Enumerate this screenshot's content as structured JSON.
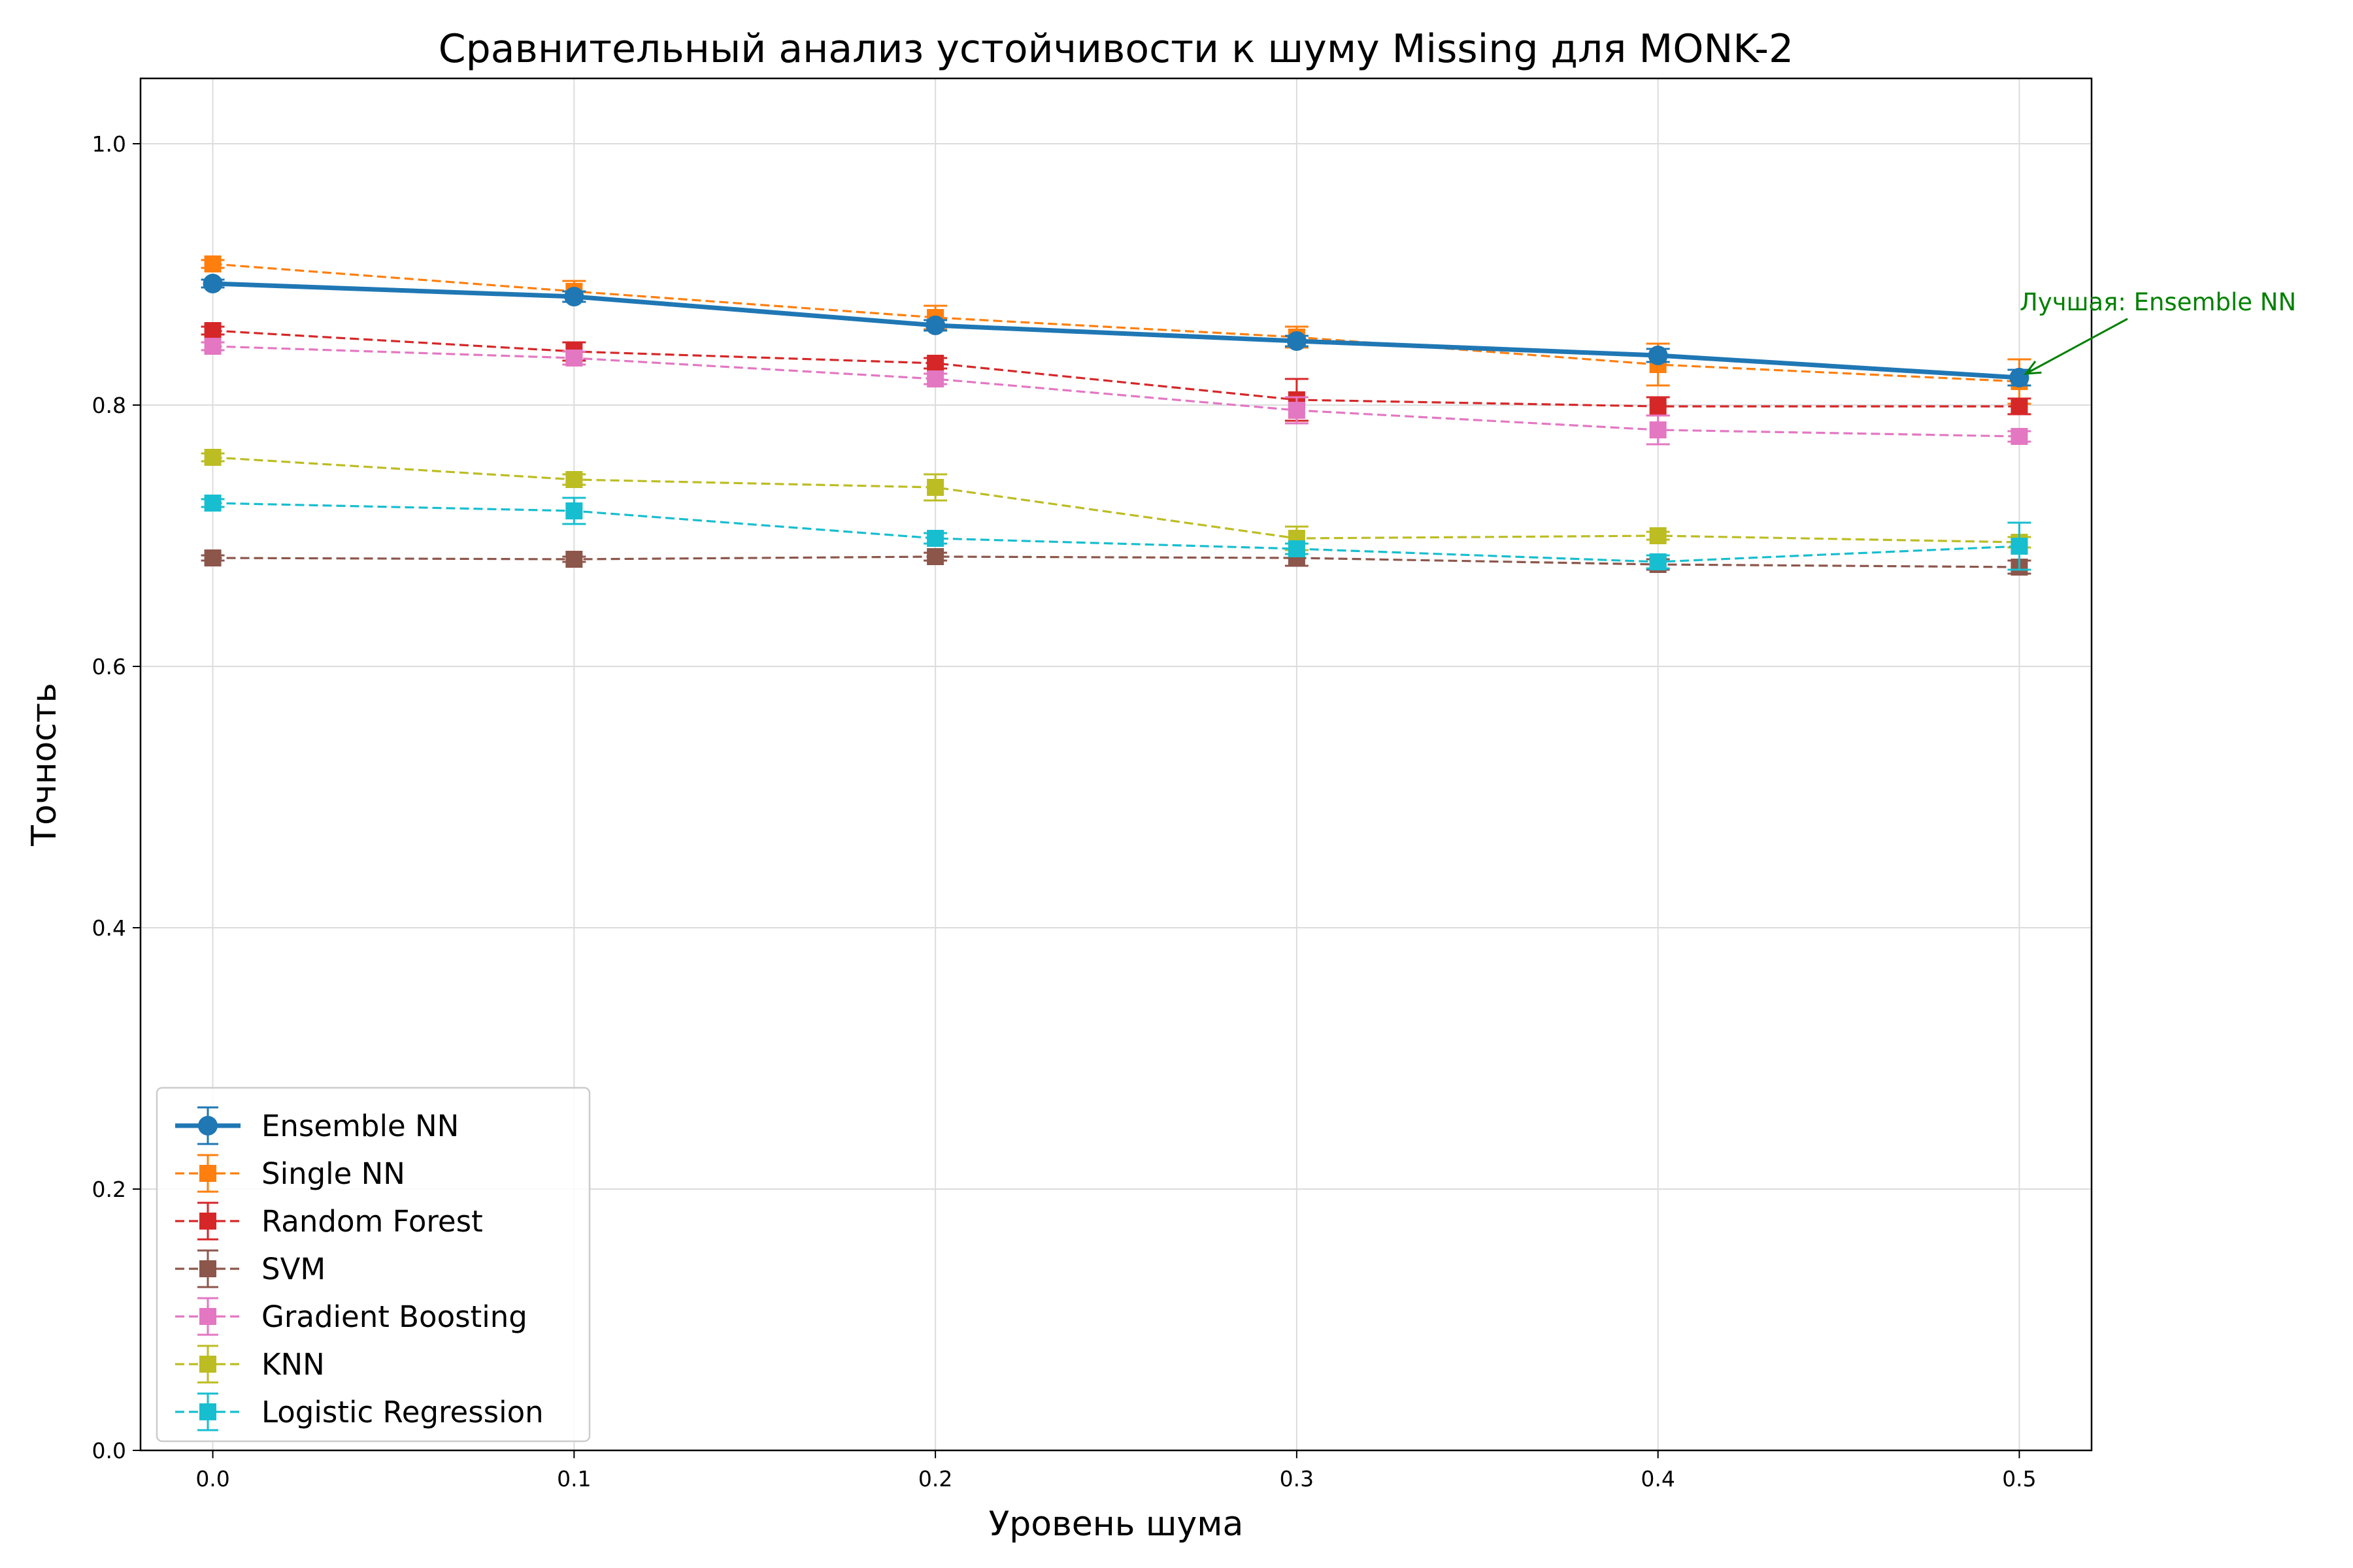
{
  "chart_data": {
    "type": "line",
    "title": "Сравнительный анализ устойчивости к шуму Missing для MONK-2",
    "xlabel": "Уровень шума",
    "ylabel": "Точность",
    "xlim": [
      -0.02,
      0.52
    ],
    "ylim": [
      0.0,
      1.05
    ],
    "x": [
      0.0,
      0.1,
      0.2,
      0.3,
      0.4,
      0.5
    ],
    "x_ticks": [
      "0.0",
      "0.1",
      "0.2",
      "0.3",
      "0.4",
      "0.5"
    ],
    "y_ticks": [
      "0.0",
      "0.2",
      "0.4",
      "0.6",
      "0.8",
      "1.0"
    ],
    "grid": true,
    "legend_position": "lower-left",
    "series": [
      {
        "name": "Ensemble NN",
        "color": "#1f77b4",
        "marker": "circle",
        "line_style": "solid",
        "values": [
          0.893,
          0.883,
          0.861,
          0.849,
          0.838,
          0.821
        ],
        "errors": [
          0.003,
          0.004,
          0.004,
          0.004,
          0.005,
          0.006
        ]
      },
      {
        "name": "Single NN",
        "color": "#ff7f0e",
        "marker": "square",
        "line_style": "dashed",
        "values": [
          0.908,
          0.887,
          0.867,
          0.852,
          0.831,
          0.818
        ],
        "errors": [
          0.003,
          0.008,
          0.009,
          0.008,
          0.016,
          0.017
        ]
      },
      {
        "name": "Random Forest",
        "color": "#d62728",
        "marker": "square",
        "line_style": "dashed",
        "values": [
          0.857,
          0.841,
          0.832,
          0.804,
          0.799,
          0.799
        ],
        "errors": [
          0.003,
          0.007,
          0.004,
          0.016,
          0.007,
          0.006
        ]
      },
      {
        "name": "SVM",
        "color": "#8c564b",
        "marker": "square",
        "line_style": "dashed",
        "values": [
          0.683,
          0.682,
          0.684,
          0.683,
          0.678,
          0.676
        ],
        "errors": [
          0.002,
          0.002,
          0.003,
          0.006,
          0.004,
          0.005
        ]
      },
      {
        "name": "Gradient Boosting",
        "color": "#e377c2",
        "marker": "square",
        "line_style": "dashed",
        "values": [
          0.845,
          0.836,
          0.82,
          0.796,
          0.781,
          0.776
        ],
        "errors": [
          0.003,
          0.005,
          0.004,
          0.01,
          0.011,
          0.004
        ]
      },
      {
        "name": "KNN",
        "color": "#bcbd22",
        "marker": "square",
        "line_style": "dashed",
        "values": [
          0.76,
          0.743,
          0.737,
          0.698,
          0.7,
          0.695
        ],
        "errors": [
          0.003,
          0.004,
          0.01,
          0.009,
          0.003,
          0.004
        ]
      },
      {
        "name": "Logistic Regression",
        "color": "#17becf",
        "marker": "square",
        "line_style": "dashed",
        "values": [
          0.725,
          0.719,
          0.698,
          0.69,
          0.68,
          0.692
        ],
        "errors": [
          0.003,
          0.01,
          0.004,
          0.004,
          0.005,
          0.018
        ]
      }
    ],
    "annotation": {
      "text": "Лучшая: Ensemble NN",
      "color": "#008000",
      "target_x": 0.5,
      "target_y": 0.821
    }
  }
}
